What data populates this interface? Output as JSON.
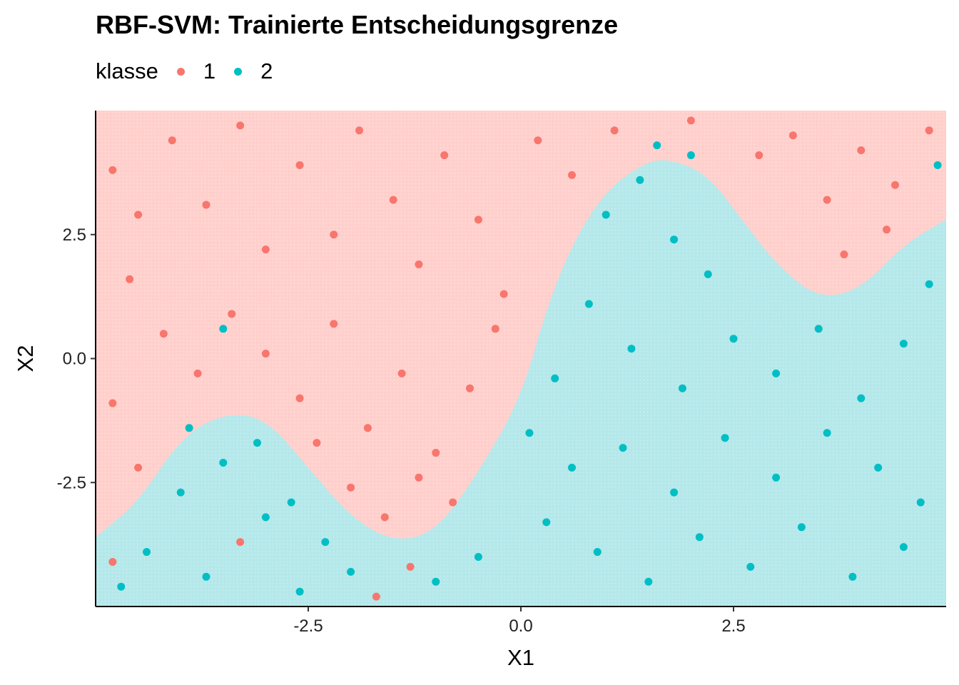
{
  "chart_data": {
    "type": "scatter",
    "title": "RBF-SVM: Trainierte Entscheidungsgrenze",
    "xlabel": "X1",
    "ylabel": "X2",
    "xlim": [
      -5,
      5
    ],
    "ylim": [
      -5,
      5
    ],
    "x_ticks": [
      -2.5,
      0.0,
      2.5
    ],
    "x_tick_labels": [
      "-2.5",
      "0.0",
      "2.5"
    ],
    "y_ticks": [
      -2.5,
      0.0,
      2.5
    ],
    "y_tick_labels": [
      "-2.5",
      "0.0",
      "2.5"
    ],
    "grid": false,
    "legend": {
      "title": "klasse",
      "position": "top-left",
      "entries": [
        "1",
        "2"
      ]
    },
    "colors": {
      "1": "#f8766d",
      "2": "#00bfc4",
      "region_1": "#ffcfcc",
      "region_2": "#b4e8ea"
    },
    "background": "decision regions of the trained RBF-SVM shaded by predicted class",
    "boundary_class1_upper_region": [
      [
        -5,
        -3.6
      ],
      [
        -4.5,
        -2.9
      ],
      [
        -4.0,
        -1.6
      ],
      [
        -3.5,
        -1.1
      ],
      [
        -3.0,
        -1.2
      ],
      [
        -2.5,
        -2.2
      ],
      [
        -2.0,
        -3.2
      ],
      [
        -1.5,
        -3.7
      ],
      [
        -1.0,
        -3.5
      ],
      [
        -0.5,
        -2.3
      ],
      [
        0.0,
        -0.8
      ],
      [
        0.3,
        1.0
      ],
      [
        0.6,
        2.3
      ],
      [
        1.0,
        3.4
      ],
      [
        1.5,
        4.0
      ],
      [
        1.8,
        4.0
      ],
      [
        2.2,
        3.7
      ],
      [
        2.6,
        2.8
      ],
      [
        3.0,
        1.9
      ],
      [
        3.5,
        1.2
      ],
      [
        4.0,
        1.4
      ],
      [
        4.5,
        2.3
      ],
      [
        5,
        2.8
      ]
    ],
    "series": [
      {
        "name": "1",
        "class": 1,
        "points": [
          [
            -4.8,
            3.8
          ],
          [
            -4.5,
            2.9
          ],
          [
            -4.1,
            4.4
          ],
          [
            -3.7,
            3.1
          ],
          [
            -3.3,
            4.7
          ],
          [
            -3.0,
            2.2
          ],
          [
            -2.6,
            3.9
          ],
          [
            -2.2,
            2.5
          ],
          [
            -1.9,
            4.6
          ],
          [
            -1.5,
            3.2
          ],
          [
            -1.2,
            1.9
          ],
          [
            -0.9,
            4.1
          ],
          [
            -0.5,
            2.8
          ],
          [
            -0.2,
            1.3
          ],
          [
            0.2,
            4.4
          ],
          [
            0.6,
            3.7
          ],
          [
            -4.6,
            1.6
          ],
          [
            -4.2,
            0.5
          ],
          [
            -3.8,
            -0.3
          ],
          [
            -3.4,
            0.9
          ],
          [
            -3.0,
            0.1
          ],
          [
            -2.6,
            -0.8
          ],
          [
            -2.2,
            0.7
          ],
          [
            -1.8,
            -1.4
          ],
          [
            -1.4,
            -0.3
          ],
          [
            -1.0,
            -1.9
          ],
          [
            -0.6,
            -0.6
          ],
          [
            -0.3,
            0.6
          ],
          [
            -2.0,
            -2.6
          ],
          [
            -1.6,
            -3.2
          ],
          [
            -1.2,
            -2.4
          ],
          [
            -0.8,
            -2.9
          ],
          [
            -2.4,
            -1.7
          ],
          [
            -4.8,
            -0.9
          ],
          [
            -4.5,
            -2.2
          ],
          [
            3.2,
            4.5
          ],
          [
            3.6,
            3.2
          ],
          [
            4.0,
            4.2
          ],
          [
            4.4,
            3.5
          ],
          [
            4.8,
            4.6
          ],
          [
            3.8,
            2.1
          ],
          [
            4.3,
            2.6
          ],
          [
            2.8,
            4.1
          ],
          [
            1.1,
            4.6
          ],
          [
            2.0,
            4.8
          ],
          [
            -3.3,
            -3.7
          ],
          [
            -1.7,
            -4.8
          ],
          [
            -1.3,
            -4.2
          ],
          [
            -4.8,
            -4.1
          ]
        ]
      },
      {
        "name": "2",
        "class": 2,
        "points": [
          [
            1.0,
            2.9
          ],
          [
            1.4,
            3.6
          ],
          [
            1.8,
            2.4
          ],
          [
            2.2,
            1.7
          ],
          [
            0.8,
            1.1
          ],
          [
            1.3,
            0.2
          ],
          [
            1.9,
            -0.6
          ],
          [
            2.5,
            0.4
          ],
          [
            3.0,
            -0.3
          ],
          [
            3.5,
            0.6
          ],
          [
            4.0,
            -0.8
          ],
          [
            4.5,
            0.3
          ],
          [
            4.8,
            1.5
          ],
          [
            0.4,
            -0.4
          ],
          [
            0.1,
            -1.5
          ],
          [
            0.6,
            -2.2
          ],
          [
            1.2,
            -1.8
          ],
          [
            1.8,
            -2.7
          ],
          [
            2.4,
            -1.6
          ],
          [
            3.0,
            -2.4
          ],
          [
            3.6,
            -1.5
          ],
          [
            4.2,
            -2.2
          ],
          [
            4.7,
            -2.9
          ],
          [
            0.3,
            -3.3
          ],
          [
            0.9,
            -3.9
          ],
          [
            1.5,
            -4.5
          ],
          [
            2.1,
            -3.6
          ],
          [
            2.7,
            -4.2
          ],
          [
            3.3,
            -3.4
          ],
          [
            3.9,
            -4.4
          ],
          [
            4.5,
            -3.8
          ],
          [
            -0.5,
            -4.0
          ],
          [
            -1.0,
            -4.5
          ],
          [
            -2.0,
            -4.3
          ],
          [
            -2.6,
            -4.7
          ],
          [
            -3.0,
            -3.2
          ],
          [
            -3.5,
            -2.1
          ],
          [
            -4.0,
            -2.7
          ],
          [
            -4.4,
            -3.9
          ],
          [
            -4.7,
            -4.6
          ],
          [
            -3.7,
            -4.4
          ],
          [
            -3.1,
            -1.7
          ],
          [
            -2.7,
            -2.9
          ],
          [
            -3.9,
            -1.4
          ],
          [
            -2.3,
            -3.7
          ],
          [
            2.0,
            4.1
          ],
          [
            1.6,
            4.3
          ],
          [
            4.9,
            3.9
          ],
          [
            -3.5,
            0.6
          ]
        ]
      }
    ]
  }
}
